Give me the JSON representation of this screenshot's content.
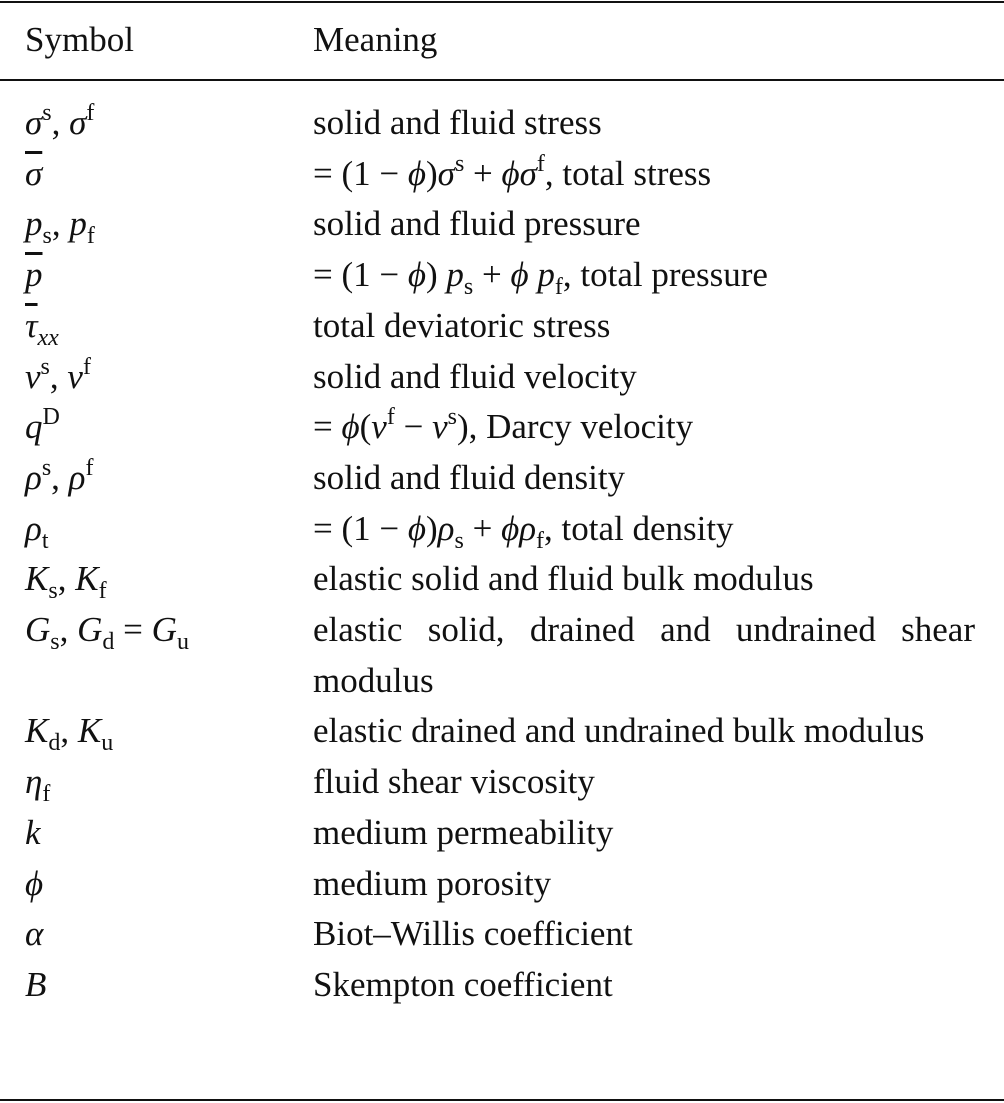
{
  "header": {
    "symbol": "Symbol",
    "meaning": "Meaning"
  },
  "rows": [
    {
      "symbol": [
        [
          "i",
          "σ"
        ],
        [
          "sup",
          "s"
        ],
        [
          "t",
          ", "
        ],
        [
          "i",
          "σ"
        ],
        [
          "sup",
          "f"
        ]
      ],
      "meaning": [
        [
          "t",
          "solid and fluid stress"
        ]
      ]
    },
    {
      "symbol": [
        [
          "bar",
          "σ"
        ]
      ],
      "meaning": [
        [
          "t",
          "= (1 − "
        ],
        [
          "i",
          "ϕ"
        ],
        [
          "t",
          ")"
        ],
        [
          "i",
          "σ"
        ],
        [
          "sup",
          "s"
        ],
        [
          "t",
          " + "
        ],
        [
          "i",
          "ϕσ"
        ],
        [
          "sup",
          "f"
        ],
        [
          "t",
          ", total stress"
        ]
      ]
    },
    {
      "symbol": [
        [
          "i",
          "p"
        ],
        [
          "sub",
          "s"
        ],
        [
          "t",
          ", "
        ],
        [
          "i",
          "p"
        ],
        [
          "sub",
          "f"
        ]
      ],
      "meaning": [
        [
          "t",
          "solid and fluid pressure"
        ]
      ]
    },
    {
      "symbol": [
        [
          "bar",
          "p"
        ]
      ],
      "meaning": [
        [
          "t",
          "= (1 − "
        ],
        [
          "i",
          "ϕ"
        ],
        [
          "t",
          ") "
        ],
        [
          "i",
          "p"
        ],
        [
          "sub",
          "s"
        ],
        [
          "t",
          " + "
        ],
        [
          "i",
          "ϕ p"
        ],
        [
          "sub",
          "f"
        ],
        [
          "t",
          ", total pressure"
        ]
      ]
    },
    {
      "symbol": [
        [
          "bar",
          "τ"
        ],
        [
          "subi",
          "xx"
        ]
      ],
      "meaning": [
        [
          "t",
          "total deviatoric stress"
        ]
      ]
    },
    {
      "symbol": [
        [
          "i",
          "v"
        ],
        [
          "sup",
          "s"
        ],
        [
          "t",
          ", "
        ],
        [
          "i",
          "v"
        ],
        [
          "sup",
          "f"
        ]
      ],
      "meaning": [
        [
          "t",
          "solid and fluid velocity"
        ]
      ]
    },
    {
      "symbol": [
        [
          "i",
          "q"
        ],
        [
          "sup",
          "D"
        ]
      ],
      "meaning": [
        [
          "t",
          "= "
        ],
        [
          "i",
          "ϕ"
        ],
        [
          "t",
          "("
        ],
        [
          "i",
          "v"
        ],
        [
          "sup",
          "f"
        ],
        [
          "t",
          " − "
        ],
        [
          "i",
          "v"
        ],
        [
          "sup",
          "s"
        ],
        [
          "t",
          "), Darcy velocity"
        ]
      ]
    },
    {
      "symbol": [
        [
          "i",
          "ρ"
        ],
        [
          "sup",
          "s"
        ],
        [
          "t",
          ", "
        ],
        [
          "i",
          "ρ"
        ],
        [
          "sup",
          "f"
        ]
      ],
      "meaning": [
        [
          "t",
          "solid and fluid density"
        ]
      ]
    },
    {
      "symbol": [
        [
          "i",
          "ρ"
        ],
        [
          "sub",
          "t"
        ]
      ],
      "meaning": [
        [
          "t",
          "= (1 − "
        ],
        [
          "i",
          "ϕ"
        ],
        [
          "t",
          ")"
        ],
        [
          "i",
          "ρ"
        ],
        [
          "sub",
          "s"
        ],
        [
          "t",
          " + "
        ],
        [
          "i",
          "ϕρ"
        ],
        [
          "sub",
          "f"
        ],
        [
          "t",
          ", total density"
        ]
      ]
    },
    {
      "symbol": [
        [
          "i",
          "K"
        ],
        [
          "sub",
          "s"
        ],
        [
          "t",
          ", "
        ],
        [
          "i",
          "K"
        ],
        [
          "sub",
          "f"
        ]
      ],
      "meaning": [
        [
          "t",
          "elastic solid and fluid bulk modulus"
        ]
      ]
    },
    {
      "symbol": [
        [
          "i",
          "G"
        ],
        [
          "sub",
          "s"
        ],
        [
          "t",
          ", "
        ],
        [
          "i",
          "G"
        ],
        [
          "sub",
          "d"
        ],
        [
          "t",
          " = "
        ],
        [
          "i",
          "G"
        ],
        [
          "sub",
          "u"
        ]
      ],
      "meaning": [
        [
          "t",
          "elastic solid, drained and undrained shear modulus"
        ]
      ]
    },
    {
      "symbol": [
        [
          "i",
          "K"
        ],
        [
          "sub",
          "d"
        ],
        [
          "t",
          ", "
        ],
        [
          "i",
          "K"
        ],
        [
          "sub",
          "u"
        ]
      ],
      "meaning": [
        [
          "t",
          "elastic drained and undrained bulk modulus"
        ]
      ]
    },
    {
      "symbol": [
        [
          "i",
          "η"
        ],
        [
          "sub",
          "f"
        ]
      ],
      "meaning": [
        [
          "t",
          "fluid shear viscosity"
        ]
      ]
    },
    {
      "symbol": [
        [
          "i",
          "k"
        ]
      ],
      "meaning": [
        [
          "t",
          "medium permeability"
        ]
      ]
    },
    {
      "symbol": [
        [
          "i",
          "ϕ"
        ]
      ],
      "meaning": [
        [
          "t",
          "medium porosity"
        ]
      ]
    },
    {
      "symbol": [
        [
          "i",
          "α"
        ]
      ],
      "meaning": [
        [
          "t",
          "Biot–Willis coefficient"
        ]
      ]
    },
    {
      "symbol": [
        [
          "i",
          "B"
        ]
      ],
      "meaning": [
        [
          "t",
          "Skempton coefficient"
        ]
      ]
    }
  ]
}
